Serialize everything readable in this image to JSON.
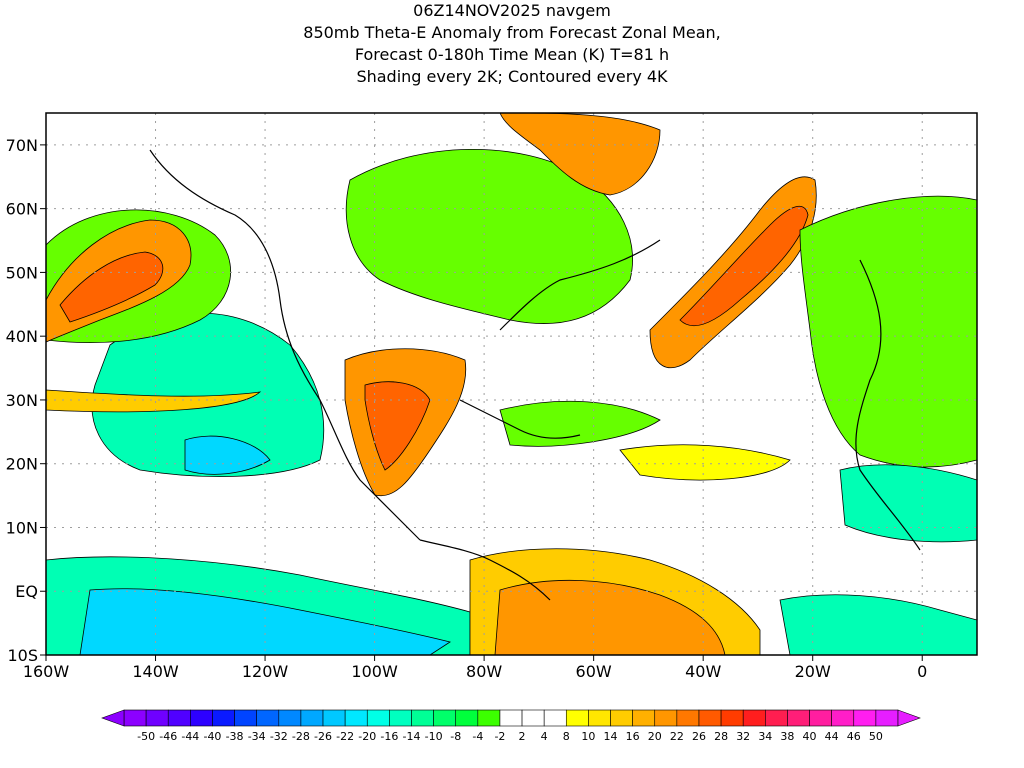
{
  "header": {
    "line1": "06Z14NOV2025 navgem",
    "line2": "850mb Theta-E Anomaly from Forecast Zonal Mean,",
    "line3": "Forecast 0-180h Time Mean (K) T=81 h",
    "line4": "Shading every 2K; Contoured every 4K"
  },
  "axes": {
    "lon_labels": [
      "160W",
      "140W",
      "120W",
      "100W",
      "80W",
      "60W",
      "40W",
      "20W",
      "0"
    ],
    "lon_values": [
      -160,
      -140,
      -120,
      -100,
      -80,
      -60,
      -40,
      -20,
      0
    ],
    "lat_labels": [
      "70N",
      "60N",
      "50N",
      "40N",
      "30N",
      "20N",
      "10N",
      "EQ",
      "10S"
    ],
    "lat_values": [
      70,
      60,
      50,
      40,
      30,
      20,
      10,
      0,
      -10
    ],
    "lon_range": [
      -160,
      10
    ],
    "lat_range": [
      -10,
      75
    ]
  },
  "colorbar": {
    "labels": [
      "-50",
      "-46",
      "-44",
      "-40",
      "-38",
      "-34",
      "-32",
      "-28",
      "-26",
      "-22",
      "-20",
      "-16",
      "-14",
      "-10",
      "-8",
      "-4",
      "-2",
      "2",
      "4",
      "8",
      "10",
      "14",
      "16",
      "20",
      "22",
      "26",
      "28",
      "32",
      "34",
      "38",
      "40",
      "44",
      "46",
      "50"
    ],
    "colors": [
      "#8c00ff",
      "#6f00ff",
      "#5000ff",
      "#2d00ff",
      "#0a1aff",
      "#0044ff",
      "#0066ff",
      "#0088ff",
      "#00a8ff",
      "#00c8ff",
      "#00e8ff",
      "#00ffe6",
      "#00ffbf",
      "#00ff96",
      "#00ff6a",
      "#00ff3c",
      "#3cff00",
      "#ffffff",
      "#ffffff",
      "#ffffff",
      "#ffff00",
      "#ffe600",
      "#ffcc00",
      "#ffb000",
      "#ff9600",
      "#ff7800",
      "#ff5a00",
      "#ff3c00",
      "#ff1e1e",
      "#ff1e50",
      "#ff1e78",
      "#ff1ea0",
      "#ff1ec8",
      "#ff1ef0",
      "#e61eff"
    ]
  },
  "map_colors": {
    "warm_strong": "#ff6400",
    "warm_mid": "#ff9600",
    "warm_light": "#ffcc00",
    "warm_pale": "#ffff00",
    "cool_green": "#66ff00",
    "cool_teal": "#00ffb4",
    "cool_cyan": "#00d8ff",
    "background": "#ffffff",
    "grid": "#9e9e9e"
  }
}
